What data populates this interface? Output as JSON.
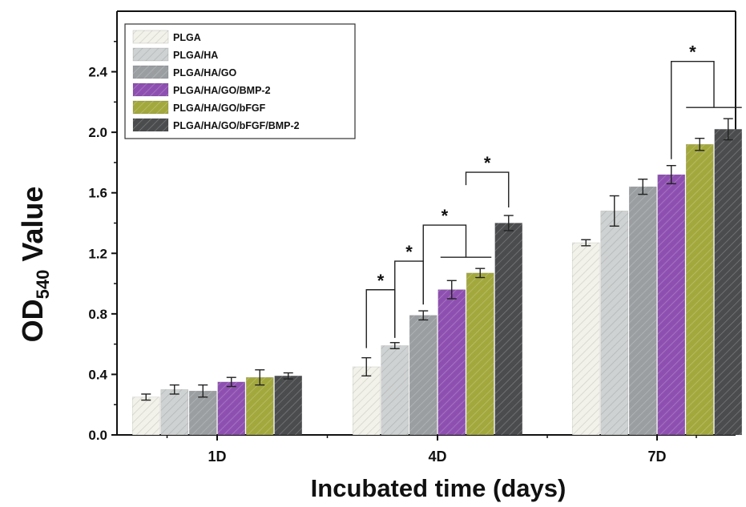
{
  "chart_data": {
    "type": "bar",
    "xlabel": "Incubated time (days)",
    "ylabel": {
      "main": "OD",
      "sub": "540",
      "suffix": " Value"
    },
    "ylim": [
      0,
      2.8
    ],
    "yticks": [
      "0.0",
      "0.4",
      "0.8",
      "1.2",
      "1.6",
      "2.0",
      "2.4"
    ],
    "categories": [
      "1D",
      "4D",
      "7D"
    ],
    "legend_position": "top-left",
    "series": [
      {
        "name": "PLGA",
        "color": "#f2f2ea",
        "values": [
          0.25,
          0.45,
          1.27
        ],
        "errors": [
          0.02,
          0.06,
          0.02
        ]
      },
      {
        "name": "PLGA/HA",
        "color": "#cfd2d2",
        "values": [
          0.3,
          0.59,
          1.48
        ],
        "errors": [
          0.03,
          0.02,
          0.1
        ]
      },
      {
        "name": "PLGA/HA/GO",
        "color": "#9a9ea1",
        "values": [
          0.29,
          0.79,
          1.64
        ],
        "errors": [
          0.04,
          0.03,
          0.05
        ]
      },
      {
        "name": "PLGA/HA/GO/BMP-2",
        "color": "#8e50b0",
        "values": [
          0.35,
          0.96,
          1.72
        ],
        "errors": [
          0.03,
          0.06,
          0.06
        ]
      },
      {
        "name": "PLGA/HA/GO/bFGF",
        "color": "#a3a83d",
        "values": [
          0.38,
          1.07,
          1.92
        ],
        "errors": [
          0.05,
          0.03,
          0.04
        ]
      },
      {
        "name": "PLGA/HA/GO/bFGF/BMP-2",
        "color": "#4a4c4e",
        "values": [
          0.39,
          1.4,
          2.02
        ],
        "errors": [
          0.02,
          0.05,
          0.07
        ]
      }
    ],
    "annotations": {
      "significance_marker": "*",
      "brackets": [
        {
          "category": "4D",
          "from": "PLGA",
          "to": "PLGA/HA"
        },
        {
          "category": "4D",
          "from": "PLGA/HA",
          "to": "PLGA/HA/GO"
        },
        {
          "category": "4D",
          "from": "PLGA/HA/GO",
          "to": "PLGA/HA/GO/BMP-2 + PLGA/HA/GO/bFGF"
        },
        {
          "category": "4D",
          "from": "PLGA/HA/GO/BMP-2 + PLGA/HA/GO/bFGF",
          "to": "PLGA/HA/GO/bFGF/BMP-2"
        },
        {
          "category": "7D",
          "from": "PLGA/HA/GO/BMP-2",
          "to": "PLGA/HA/GO/bFGF + PLGA/HA/GO/bFGF/BMP-2"
        }
      ]
    }
  }
}
